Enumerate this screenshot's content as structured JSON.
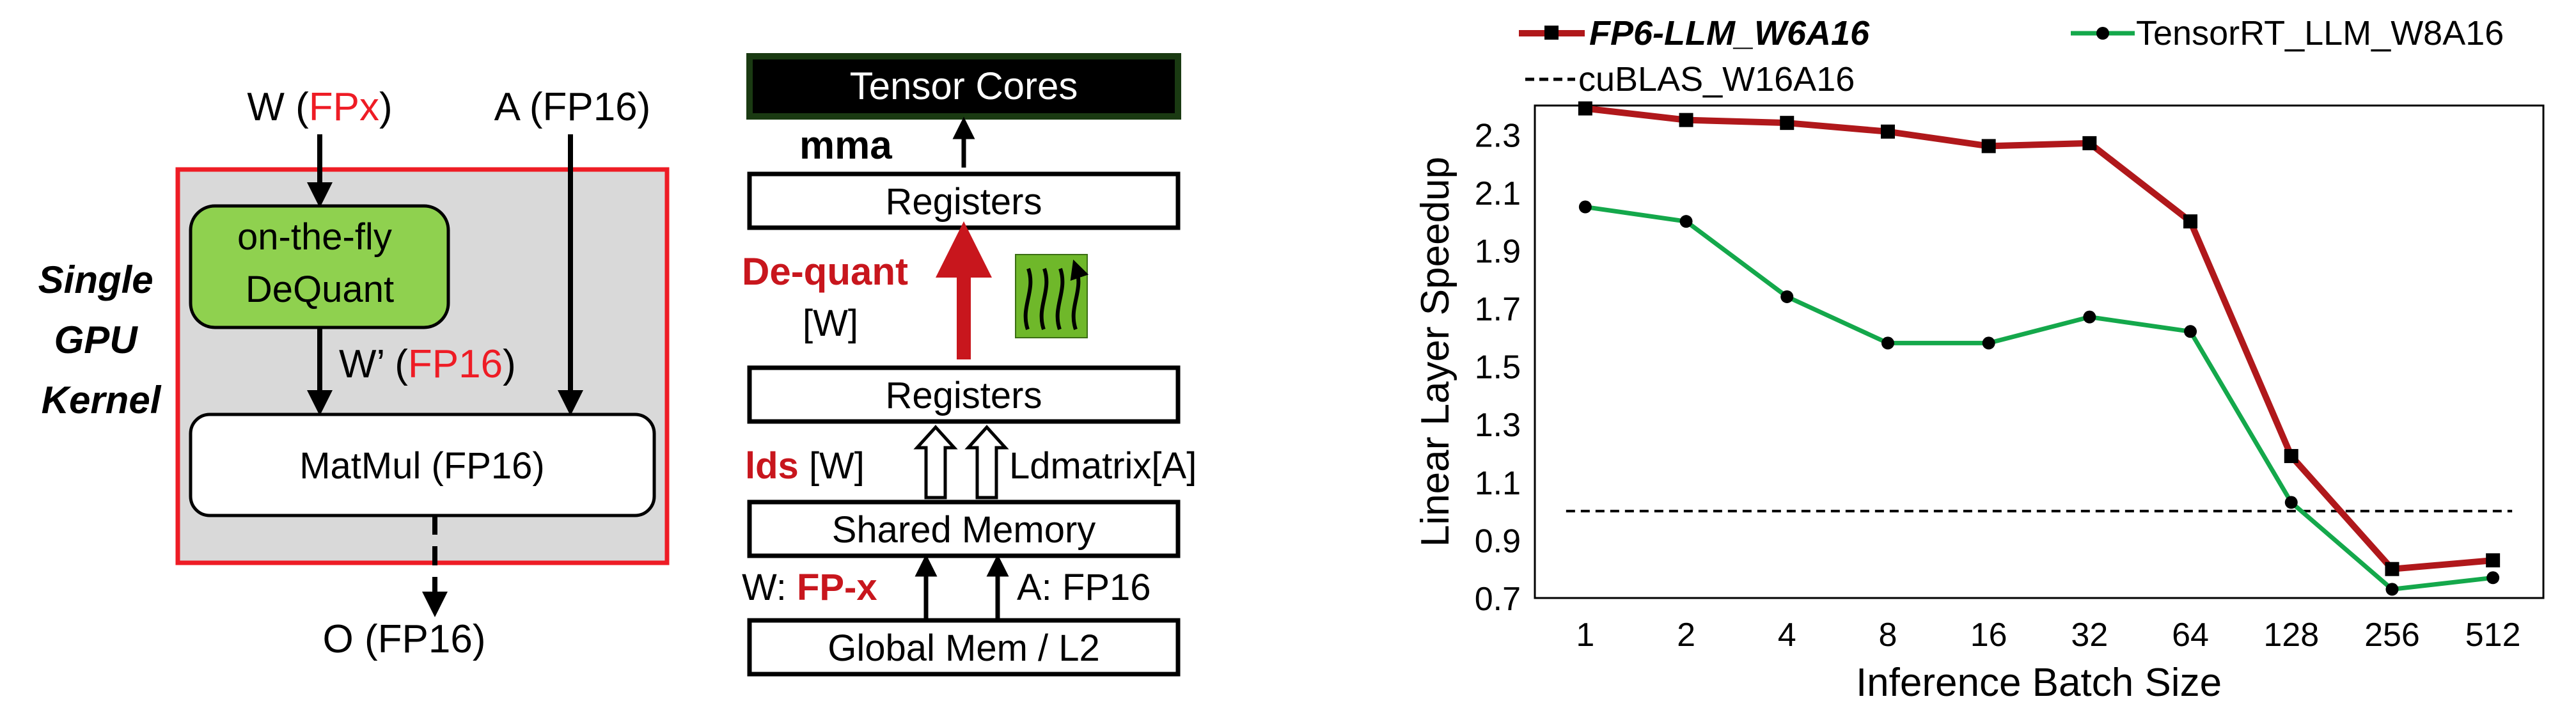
{
  "diagram_kernel": {
    "w_label": "W (",
    "w_type": "FPx",
    "w_close": ")",
    "a_label": "A (FP16)",
    "side_label": [
      "Single",
      "GPU",
      "Kernel"
    ],
    "dequant_box": [
      "on-the-fly",
      "DeQuant"
    ],
    "wprime_label": "W’ (",
    "wprime_type": "FP16",
    "wprime_close": ")",
    "matmul_label": "MatMul (FP16)",
    "output_label": "O (FP16)"
  },
  "diagram_memory": {
    "tensor_cores": "Tensor Cores",
    "mma": "mma",
    "registers_top": "Registers",
    "dequant_label": "De-quant",
    "dequant_operand": "[W]",
    "registers_bottom": "Registers",
    "lds_label": "lds",
    "lds_operand": "[W]",
    "ldmatrix_label": "Ldmatrix[A]",
    "shared_memory": "Shared Memory",
    "w_fp_prefix": "W:",
    "w_fp_type": "FP-x",
    "a_fp": "A: FP16",
    "global_mem": "Global Mem / L2"
  },
  "chart_data": {
    "type": "line",
    "xlabel": "Inference Batch Size",
    "ylabel": "Linear Layer Speedup",
    "categories": [
      "1",
      "2",
      "4",
      "8",
      "16",
      "32",
      "64",
      "128",
      "256",
      "512"
    ],
    "ylim": [
      0.7,
      2.4
    ],
    "yticks": [
      "0.7",
      "0.9",
      "1.1",
      "1.3",
      "1.5",
      "1.7",
      "1.9",
      "2.1",
      "2.3"
    ],
    "legend_position": "top",
    "series": [
      {
        "name": "FP6-LLM_W6A16",
        "color": "#b0181b",
        "marker": "square",
        "values": [
          2.39,
          2.35,
          2.34,
          2.31,
          2.26,
          2.27,
          2.0,
          1.19,
          0.8,
          0.83
        ]
      },
      {
        "name": "TensorRT_LLM_W8A16",
        "color": "#14a84b",
        "marker": "circle",
        "values": [
          2.05,
          2.0,
          1.74,
          1.58,
          1.58,
          1.67,
          1.62,
          1.03,
          0.73,
          0.77
        ]
      },
      {
        "name": "cuBLAS_W16A16",
        "color": "#000000",
        "marker": "none",
        "dashed": true,
        "values": [
          1.0,
          1.0,
          1.0,
          1.0,
          1.0,
          1.0,
          1.0,
          1.0,
          1.0,
          1.0
        ]
      }
    ]
  }
}
